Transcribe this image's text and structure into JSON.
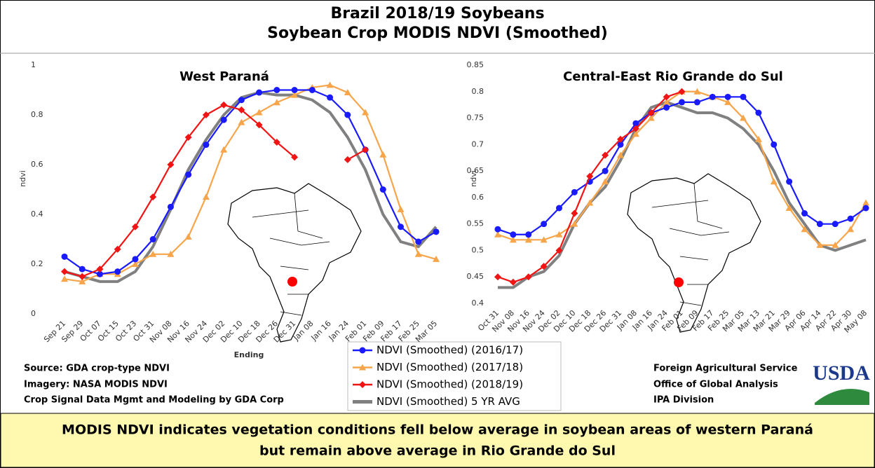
{
  "header": {
    "title": "Brazil 2018/19 Soybeans",
    "subtitle": "Soybean Crop MODIS NDVI (Smoothed)"
  },
  "chart_data": [
    {
      "type": "line",
      "title": "West Paraná",
      "xlabel": "Ending",
      "ylabel": "ndvi",
      "categories": [
        "Sep 21",
        "Sep 29",
        "Oct 07",
        "Oct 15",
        "Oct 23",
        "Oct 31",
        "Nov 08",
        "Nov 16",
        "Nov 24",
        "Dec 02",
        "Dec 10",
        "Dec 18",
        "Dec 26",
        "Dec 31",
        "Jan 08",
        "Jan 16",
        "Jan 24",
        "Feb 01",
        "Feb 09",
        "Feb 17",
        "Feb 25",
        "Mar 05"
      ],
      "ylim": [
        0,
        1
      ],
      "yticks": [
        0,
        0.2,
        0.4,
        0.6,
        0.8,
        1
      ],
      "grid": false,
      "series": [
        {
          "name": "NDVI (Smoothed) (2016/17)",
          "color": "#1a1aff",
          "marker": "circle",
          "values": [
            0.23,
            0.18,
            0.16,
            0.17,
            0.22,
            0.3,
            0.43,
            0.56,
            0.68,
            0.78,
            0.86,
            0.89,
            0.9,
            0.9,
            0.9,
            0.87,
            0.8,
            0.66,
            0.5,
            0.35,
            0.29,
            0.33
          ]
        },
        {
          "name": "NDVI (Smoothed) (2017/18)",
          "color": "#f7a54a",
          "marker": "triangle",
          "values": [
            0.14,
            0.13,
            0.16,
            0.16,
            0.2,
            0.24,
            0.24,
            0.31,
            0.47,
            0.66,
            0.77,
            0.81,
            0.85,
            0.88,
            0.91,
            0.92,
            0.89,
            0.81,
            0.64,
            0.42,
            0.24,
            0.22
          ]
        },
        {
          "name": "NDVI (Smoothed) (2018/19)",
          "color": "#f01414",
          "marker": "diamond",
          "values": [
            0.17,
            0.15,
            0.18,
            0.26,
            0.35,
            0.47,
            0.6,
            0.71,
            0.8,
            0.84,
            0.82,
            0.76,
            0.69,
            0.63,
            null,
            null,
            0.62,
            0.66,
            null,
            null,
            null,
            null
          ]
        },
        {
          "name": "NDVI (Smoothed) 5 YR AVG",
          "color": "#808080",
          "marker": "none",
          "values": [
            0.17,
            0.15,
            0.13,
            0.13,
            0.17,
            0.27,
            0.42,
            0.58,
            0.7,
            0.8,
            0.87,
            0.89,
            0.88,
            0.88,
            0.86,
            0.81,
            0.71,
            0.58,
            0.4,
            0.29,
            0.27,
            0.35
          ]
        }
      ]
    },
    {
      "type": "line",
      "title": "Central-East Rio Grande do Sul",
      "ylabel": "ndvi",
      "categories": [
        "Oct 31",
        "Nov 08",
        "Nov 16",
        "Nov 24",
        "Dec 02",
        "Dec 10",
        "Dec 18",
        "Dec 26",
        "Dec 31",
        "Jan 08",
        "Jan 16",
        "Jan 24",
        "Feb 01",
        "Feb 09",
        "Feb 17",
        "Feb 25",
        "Mar 05",
        "Mar 13",
        "Mar 21",
        "Mar 29",
        "Apr 06",
        "Apr 14",
        "Apr 22",
        "Apr 30",
        "May 08"
      ],
      "ylim": [
        0.4,
        0.85
      ],
      "yticks": [
        0.4,
        0.45,
        0.5,
        0.55,
        0.6,
        0.65,
        0.7,
        0.75,
        0.8,
        0.85
      ],
      "grid": false,
      "series": [
        {
          "name": "NDVI (Smoothed) (2016/17)",
          "color": "#1a1aff",
          "marker": "circle",
          "values": [
            0.54,
            0.53,
            0.53,
            0.55,
            0.58,
            0.61,
            0.63,
            0.65,
            0.7,
            0.74,
            0.76,
            0.77,
            0.78,
            0.78,
            0.79,
            0.79,
            0.79,
            0.76,
            0.7,
            0.63,
            0.57,
            0.55,
            0.55,
            0.56,
            0.58
          ]
        },
        {
          "name": "NDVI (Smoothed) (2017/18)",
          "color": "#f7a54a",
          "marker": "triangle",
          "values": [
            0.53,
            0.52,
            0.52,
            0.52,
            0.53,
            0.55,
            0.59,
            0.63,
            0.68,
            0.72,
            0.75,
            0.78,
            0.8,
            0.8,
            0.79,
            0.78,
            0.75,
            0.71,
            0.63,
            0.58,
            0.54,
            0.51,
            0.51,
            0.54,
            0.59
          ]
        },
        {
          "name": "NDVI (Smoothed) (2018/19)",
          "color": "#f01414",
          "marker": "diamond",
          "values": [
            0.45,
            0.44,
            0.45,
            0.47,
            0.5,
            0.57,
            0.64,
            0.68,
            0.71,
            0.73,
            0.76,
            0.79,
            0.8,
            null,
            null,
            null,
            null,
            null,
            null,
            null,
            null,
            null,
            null,
            null,
            null
          ]
        },
        {
          "name": "NDVI (Smoothed) 5 YR AVG",
          "color": "#808080",
          "marker": "none",
          "values": [
            0.43,
            0.43,
            0.45,
            0.46,
            0.49,
            0.55,
            0.59,
            0.62,
            0.67,
            0.73,
            0.77,
            0.78,
            0.77,
            0.76,
            0.76,
            0.75,
            0.73,
            0.7,
            0.65,
            0.59,
            0.55,
            0.51,
            0.5,
            0.51,
            0.52
          ]
        }
      ]
    }
  ],
  "footer": {
    "source": [
      "Source: GDA crop-type NDVI",
      "Imagery: NASA MODIS NDVI",
      "Crop Signal Data Mgmt and Modeling by GDA Corp"
    ],
    "agency": [
      "Foreign Agricultural Service",
      "Office of Global Analysis",
      "IPA Division"
    ],
    "logo": "USDA"
  },
  "banner": [
    "MODIS NDVI indicates vegetation conditions fell below average in soybean areas of western Paraná",
    "but remain above average in Rio Grande do Sul"
  ]
}
